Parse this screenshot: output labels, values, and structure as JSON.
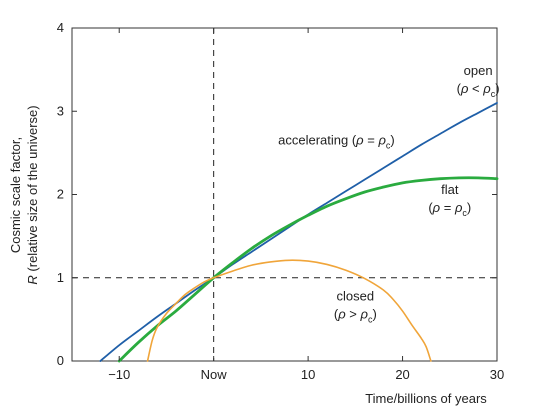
{
  "chart_data": {
    "type": "line",
    "title": "",
    "xlabel": "Time/billions of years",
    "ylabel_line1": "Cosmic scale factor,",
    "ylabel_line2_symbol": "R",
    "ylabel_line2_rest": " (relative size of the universe)",
    "xlim": [
      -15,
      30
    ],
    "ylim": [
      0,
      4
    ],
    "x_ticks": [
      {
        "value": -10,
        "label": "−10"
      },
      {
        "value": 0,
        "label": "Now"
      },
      {
        "value": 10,
        "label": "10"
      },
      {
        "value": 20,
        "label": "20"
      },
      {
        "value": 30,
        "label": "30"
      }
    ],
    "y_ticks": [
      {
        "value": 0,
        "label": "0"
      },
      {
        "value": 1,
        "label": "1"
      },
      {
        "value": 2,
        "label": "2"
      },
      {
        "value": 3,
        "label": "3"
      },
      {
        "value": 4,
        "label": "4"
      }
    ],
    "reference_lines": {
      "vertical_x": 0,
      "horizontal_y": 1,
      "style": "dashed"
    },
    "grid": false,
    "series": [
      {
        "key": "open",
        "color": "#1f5fa8",
        "x": [
          -12,
          -10,
          -8,
          -6,
          -4,
          -2,
          0,
          2,
          4,
          6,
          8,
          10,
          12,
          14,
          16,
          18,
          20,
          22,
          24,
          26,
          28,
          30
        ],
        "y": [
          0,
          0.19,
          0.36,
          0.53,
          0.69,
          0.85,
          1.0,
          1.16,
          1.31,
          1.46,
          1.61,
          1.76,
          1.9,
          2.04,
          2.18,
          2.32,
          2.46,
          2.6,
          2.73,
          2.86,
          2.98,
          3.1
        ]
      },
      {
        "key": "flat",
        "color": "#2aab3f",
        "x": [
          -10,
          -8,
          -6,
          -4,
          -2,
          0,
          2,
          4,
          6,
          8,
          10,
          12,
          14,
          16,
          18,
          20,
          22,
          24,
          26,
          28,
          30
        ],
        "y": [
          0,
          0.22,
          0.42,
          0.6,
          0.8,
          1.0,
          1.18,
          1.35,
          1.5,
          1.63,
          1.75,
          1.86,
          1.95,
          2.03,
          2.09,
          2.14,
          2.17,
          2.19,
          2.2,
          2.2,
          2.19
        ]
      },
      {
        "key": "closed",
        "color": "#f0a53a",
        "x": [
          -7,
          -6.5,
          -6,
          -5,
          -4,
          -3,
          -2,
          -1,
          0,
          2,
          4,
          6,
          8,
          10,
          12,
          14,
          16,
          18,
          19,
          20,
          21,
          22,
          22.5,
          23
        ],
        "y": [
          0,
          0.25,
          0.4,
          0.57,
          0.69,
          0.8,
          0.88,
          0.95,
          1.0,
          1.08,
          1.15,
          1.19,
          1.21,
          1.2,
          1.16,
          1.09,
          0.99,
          0.85,
          0.74,
          0.6,
          0.43,
          0.27,
          0.17,
          0
        ]
      }
    ],
    "annotations": [
      {
        "key": "open",
        "line1": "open",
        "line2_prefix": "(",
        "rho": "ρ",
        "relation": " < ",
        "rho_c": "ρ",
        "sub": "c",
        "line2_suffix": ")",
        "at": [
          28,
          3.33
        ]
      },
      {
        "key": "accelerating",
        "line1_text": "accelerating (",
        "rho": "ρ",
        "relation": " = ",
        "rho_c": "ρ",
        "sub": "c",
        "line1_suffix": ")",
        "at": [
          13,
          2.6
        ]
      },
      {
        "key": "flat",
        "line1": "flat",
        "line2_prefix": "(",
        "rho": "ρ",
        "relation": " = ",
        "rho_c": "ρ",
        "sub": "c",
        "line2_suffix": ")",
        "at": [
          25,
          1.9
        ]
      },
      {
        "key": "closed",
        "line1": "closed",
        "line2_prefix": "(",
        "rho": "ρ",
        "relation": " > ",
        "rho_c": "ρ",
        "sub": "c",
        "line2_suffix": ")",
        "at": [
          15,
          0.62
        ]
      }
    ]
  }
}
